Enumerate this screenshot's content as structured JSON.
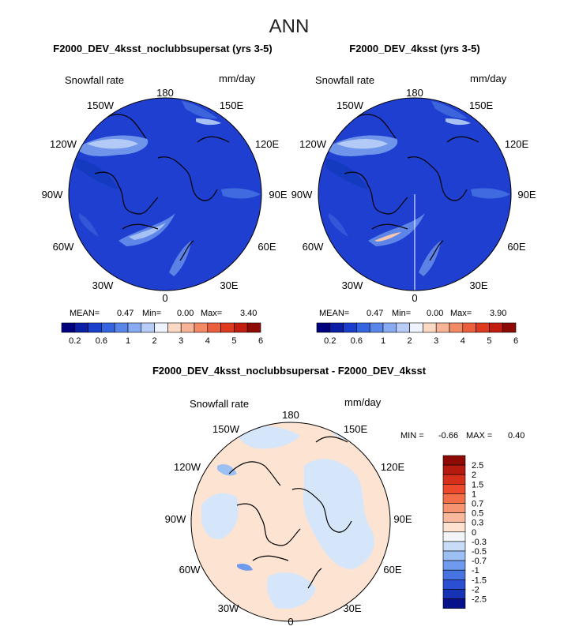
{
  "figure": {
    "season": "ANN",
    "diff_title": "F2000_DEV_4ksst_noclubbsupersat - F2000_DEV_4ksst"
  },
  "panels": [
    {
      "title": "F2000_DEV_4ksst_noclubbsupersat (yrs 3-5)",
      "var_label": "Snowfall rate",
      "units": "mm/day",
      "stats": {
        "mean_label": "MEAN=",
        "mean": "0.47",
        "min_label": "Min=",
        "min": "0.00",
        "max_label": "Max=",
        "max": "3.40"
      }
    },
    {
      "title": "F2000_DEV_4ksst (yrs 3-5)",
      "var_label": "Snowfall rate",
      "units": "mm/day",
      "stats": {
        "mean_label": "MEAN=",
        "mean": "0.47",
        "min_label": "Min=",
        "min": "0.00",
        "max_label": "Max=",
        "max": "3.90"
      }
    }
  ],
  "diff_panel": {
    "var_label": "Snowfall rate",
    "units": "mm/day",
    "min_label": "MIN =",
    "min": "-0.66",
    "max_label": "MAX =",
    "max": "0.40"
  },
  "longitude_labels": {
    "top": "180",
    "upper_left": "150W",
    "upper_right": "150E",
    "mid_upper_left": "120W",
    "mid_upper_right": "120E",
    "left": "90W",
    "right": "90E",
    "mid_lower_left": "60W",
    "mid_lower_right": "60E",
    "lower_left": "30W",
    "lower_right": "30E",
    "bottom": "0"
  },
  "colorbar_main": {
    "labels": [
      "0.2",
      "0.6",
      "1",
      "2",
      "3",
      "4",
      "5",
      "6"
    ],
    "colors": [
      "#00007f",
      "#0a1ea6",
      "#1a3fcc",
      "#3464e0",
      "#5a86ea",
      "#88aaf2",
      "#b8ccf8",
      "#eef3fd",
      "#fbd9c4",
      "#f7b496",
      "#f28a66",
      "#ea5f3e",
      "#dd3a20",
      "#c11e10",
      "#8e0b05"
    ]
  },
  "colorbar_diff": {
    "labels": [
      "2.5",
      "2",
      "1.5",
      "1",
      "0.7",
      "0.5",
      "0.3",
      "0",
      "-0.3",
      "-0.5",
      "-0.7",
      "-1",
      "-1.5",
      "-2",
      "-2.5"
    ],
    "colors": [
      "#8e0b05",
      "#b51a0e",
      "#d6301b",
      "#ec4a2b",
      "#f26e48",
      "#f69472",
      "#f9b89c",
      "#fde2d0",
      "#f2f4f8",
      "#c8dcf8",
      "#9dc0f4",
      "#6f9aee",
      "#4673e0",
      "#2a4fd0",
      "#1533b4",
      "#05128a"
    ]
  }
}
